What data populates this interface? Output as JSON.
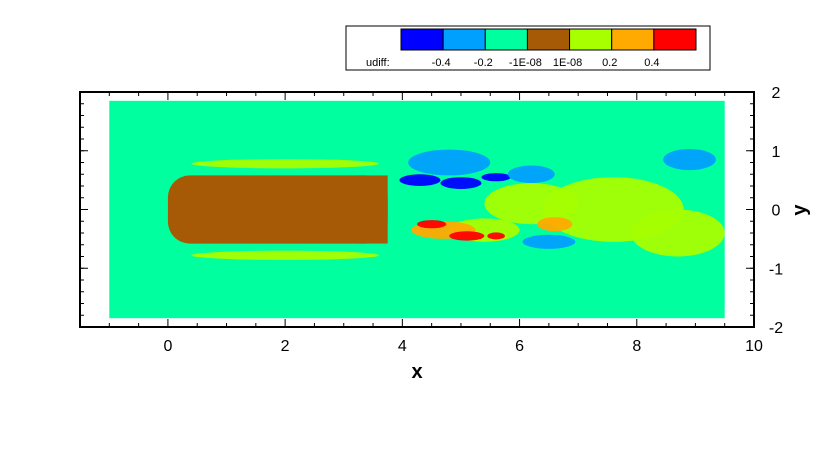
{
  "chart_data": {
    "type": "heatmap",
    "title": "",
    "variable": "udiff",
    "xlabel": "x",
    "ylabel": "y",
    "xlim": [
      -1.5,
      10
    ],
    "ylim": [
      -2,
      2
    ],
    "domain": {
      "x": [
        -1,
        9.5
      ],
      "y": [
        -1.85,
        1.85
      ]
    },
    "x_ticks": [
      0,
      2,
      4,
      6,
      8,
      10
    ],
    "y_ticks": [
      2,
      1,
      0,
      -1,
      -2
    ],
    "y_tick_side": "right",
    "body": {
      "x": [
        0,
        3.75
      ],
      "y": [
        -0.58,
        0.58
      ],
      "color": "#a65a06"
    },
    "legend": {
      "label": "udiff:",
      "placement": "top-right",
      "levels": [
        {
          "color": "#0000ff"
        },
        {
          "color": "#00a0ff"
        },
        {
          "color": "#00ff9f"
        },
        {
          "color": "#a65a06"
        },
        {
          "color": "#a7ff00"
        },
        {
          "color": "#ffaa00"
        },
        {
          "color": "#ff0000"
        }
      ],
      "tick_labels": [
        "-0.4",
        "-0.2",
        "-1E-08",
        "1E-08",
        "0.2",
        "0.4"
      ]
    },
    "colors": {
      "background": "#00ff9f",
      "blue": "#0000ff",
      "light_blue": "#00a0ff",
      "yellow_green": "#a7ff00",
      "orange": "#ffaa00",
      "red": "#ff0000"
    },
    "wake_patches": [
      {
        "x": 4.3,
        "y": 0.5,
        "rx": 0.35,
        "ry": 0.1,
        "color": "#0000ff"
      },
      {
        "x": 5.0,
        "y": 0.45,
        "rx": 0.35,
        "ry": 0.1,
        "color": "#0000ff"
      },
      {
        "x": 5.6,
        "y": 0.55,
        "rx": 0.25,
        "ry": 0.07,
        "color": "#0000ff"
      },
      {
        "x": 4.8,
        "y": 0.8,
        "rx": 0.7,
        "ry": 0.22,
        "color": "#00a0ff"
      },
      {
        "x": 6.2,
        "y": 0.6,
        "rx": 0.4,
        "ry": 0.15,
        "color": "#00a0ff"
      },
      {
        "x": 8.9,
        "y": 0.85,
        "rx": 0.45,
        "ry": 0.18,
        "color": "#00a0ff"
      },
      {
        "x": 6.5,
        "y": -0.55,
        "rx": 0.45,
        "ry": 0.12,
        "color": "#00a0ff"
      },
      {
        "x": 6.2,
        "y": 0.1,
        "rx": 0.8,
        "ry": 0.35,
        "color": "#a7ff00"
      },
      {
        "x": 7.6,
        "y": 0.0,
        "rx": 1.2,
        "ry": 0.55,
        "color": "#a7ff00"
      },
      {
        "x": 8.7,
        "y": -0.4,
        "rx": 0.8,
        "ry": 0.4,
        "color": "#a7ff00"
      },
      {
        "x": 5.4,
        "y": -0.35,
        "rx": 0.6,
        "ry": 0.2,
        "color": "#a7ff00"
      },
      {
        "x": 2.0,
        "y": 0.78,
        "rx": 1.6,
        "ry": 0.08,
        "color": "#a7ff00"
      },
      {
        "x": 2.0,
        "y": -0.78,
        "rx": 1.6,
        "ry": 0.08,
        "color": "#a7ff00"
      },
      {
        "x": 4.7,
        "y": -0.35,
        "rx": 0.55,
        "ry": 0.15,
        "color": "#ffaa00"
      },
      {
        "x": 6.6,
        "y": -0.25,
        "rx": 0.3,
        "ry": 0.12,
        "color": "#ffaa00"
      },
      {
        "x": 4.5,
        "y": -0.25,
        "rx": 0.25,
        "ry": 0.07,
        "color": "#ff0000"
      },
      {
        "x": 5.1,
        "y": -0.45,
        "rx": 0.3,
        "ry": 0.08,
        "color": "#ff0000"
      },
      {
        "x": 5.6,
        "y": -0.45,
        "rx": 0.15,
        "ry": 0.06,
        "color": "#ff0000"
      }
    ]
  }
}
